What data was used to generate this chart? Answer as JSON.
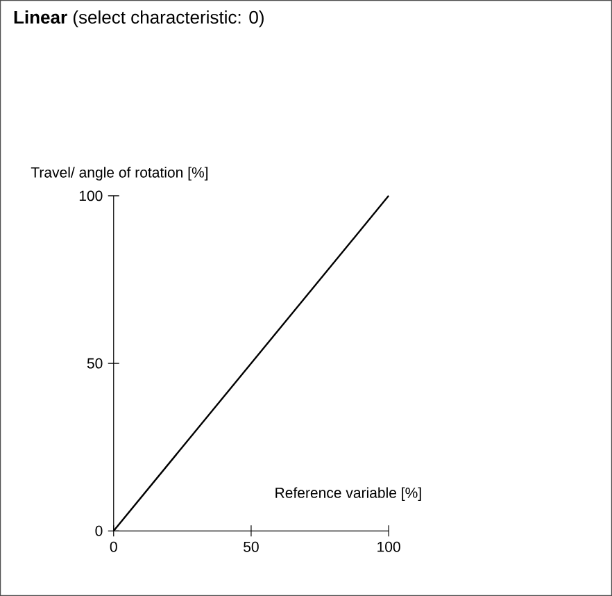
{
  "chart_data": {
    "type": "line",
    "title": "**Linear** (select characteristic: 0)",
    "xlabel": "Reference variable [%]",
    "ylabel": "Travel/ angle of rotation [%]",
    "x": [
      0,
      100
    ],
    "series": [
      {
        "color": "#000000",
        "values": [
          0,
          100
        ]
      }
    ],
    "xlim": [
      0,
      100
    ],
    "ylim": [
      0,
      100
    ],
    "xticks": [
      0,
      50,
      100
    ],
    "yticks": [
      0,
      50,
      100
    ]
  }
}
